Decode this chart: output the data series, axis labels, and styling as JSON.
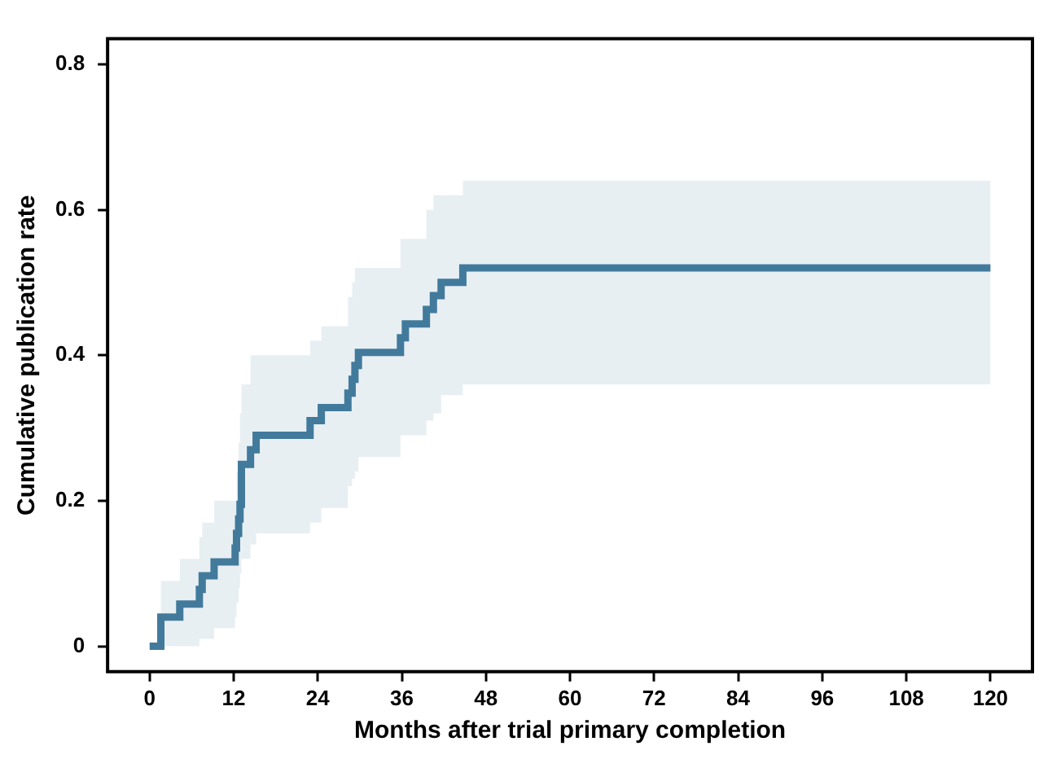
{
  "chart_data": {
    "type": "step",
    "xlabel": "Months after trial primary completion",
    "ylabel": "Cumulative publication rate",
    "x": [
      0,
      1.6,
      4.3,
      7.1,
      7.5,
      9.2,
      12.2,
      12.4,
      12.7,
      12.9,
      13.1,
      14.4,
      15.2,
      22.9,
      24.5,
      28.3,
      28.9,
      29.3,
      29.8,
      35.8,
      36.5,
      39.5,
      40.5,
      41.6,
      44.7,
      120
    ],
    "series": [
      {
        "color": "#427a9c",
        "values": [
          0,
          0.04,
          0.058,
          0.078,
          0.097,
          0.116,
          0.135,
          0.155,
          0.175,
          0.195,
          0.25,
          0.27,
          0.29,
          0.31,
          0.328,
          0.348,
          0.367,
          0.386,
          0.404,
          0.424,
          0.443,
          0.463,
          0.482,
          0.5,
          0.52,
          0.52
        ],
        "lower": [
          0,
          0,
          0,
          0.01,
          0.01,
          0.025,
          0.04,
          0.06,
          0.08,
          0.1,
          0.12,
          0.14,
          0.155,
          0.17,
          0.19,
          0.22,
          0.23,
          0.24,
          0.26,
          0.29,
          0.29,
          0.31,
          0.32,
          0.345,
          0.36,
          0.36
        ],
        "upper": [
          0,
          0.09,
          0.12,
          0.15,
          0.17,
          0.2,
          0.2,
          0.24,
          0.28,
          0.32,
          0.36,
          0.4,
          0.4,
          0.42,
          0.44,
          0.48,
          0.5,
          0.52,
          0.52,
          0.56,
          0.56,
          0.6,
          0.62,
          0.62,
          0.64,
          0.64
        ]
      }
    ],
    "xlim": [
      -6,
      126
    ],
    "ylim": [
      -0.035,
      0.835
    ],
    "xticks": [
      0,
      12,
      24,
      36,
      48,
      60,
      72,
      84,
      96,
      108,
      120
    ],
    "yticks": [
      0,
      0.2,
      0.4,
      0.6,
      0.8
    ],
    "grid": false,
    "line_style": "solid",
    "marker": "none"
  }
}
